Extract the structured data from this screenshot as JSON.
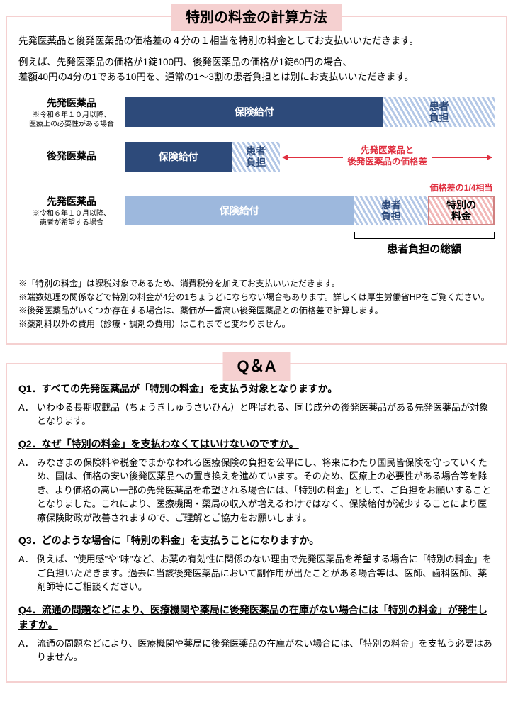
{
  "section1": {
    "title": "特別の料金の計算方法",
    "border_color": "#f5d0d0",
    "title_bg": "#f5d0d0",
    "title_color": "#000000",
    "intro": "先発医薬品と後発医薬品の価格差の４分の１相当を特別の料金としてお支払いいただきます。",
    "example_l1": "例えば、先発医薬品の価格が1錠100円、後発医薬品の価格が1錠60円の場合、",
    "example_l2": "差額40円の4分の1である10円を、通常の1〜3割の患者負担とは別にお支払いいただきます。",
    "chart": {
      "rows": [
        {
          "label_main": "先発医薬品",
          "label_sub": "※令和６年１０月以降、\n医療上の必要性がある場合",
          "segments": [
            {
              "text": "保険給付",
              "width_pct": 70,
              "bg": "#2d4a7a",
              "fg": "#ffffff",
              "hatch": null
            },
            {
              "text": "患者\n負担",
              "width_pct": 30,
              "bg": null,
              "fg": "#2d4a7a",
              "hatch": "blue"
            }
          ]
        },
        {
          "label_main": "後発医薬品",
          "label_sub": "",
          "segments": [
            {
              "text": "保険給付",
              "width_pct": 29,
              "bg": "#2d4a7a",
              "fg": "#ffffff",
              "hatch": null
            },
            {
              "text": "患者\n負担",
              "width_pct": 13,
              "bg": null,
              "fg": "#2d4a7a",
              "hatch": "blue"
            }
          ],
          "arrow": {
            "text_l1": "先発医薬品と",
            "text_l2": "後発医薬品の価格差",
            "color": "#e03040"
          }
        },
        {
          "label_main": "先発医薬品",
          "label_sub": "※令和６年１０月以降、\n患者が希望する場合",
          "top_note": "価格差の1/4相当",
          "top_note_color": "#e03040",
          "segments": [
            {
              "text": "保険給付",
              "width_pct": 62,
              "bg": "#9db8dd",
              "fg": "#ffffff",
              "hatch": null
            },
            {
              "text": "患者\n負担",
              "width_pct": 20,
              "bg": null,
              "fg": "#2d4a7a",
              "hatch": "blue"
            },
            {
              "text": "特別の\n料金",
              "width_pct": 18,
              "bg": null,
              "fg": "#000000",
              "hatch": "red",
              "border": "#d08080"
            }
          ],
          "bracket_label": "患者負担の総額"
        }
      ]
    },
    "notes": [
      "※「特別の料金」は課税対象であるため、消費税分を加えてお支払いいただきます。",
      "※端数処理の関係などで特別の料金が4分の1ちょうどにならない場合もあります。詳しくは厚生労働省HPをご覧ください。",
      "※後発医薬品がいくつか存在する場合は、薬価が一番高い後発医薬品との価格差で計算します。",
      "※薬剤料以外の費用（診療・調剤の費用）はこれまでと変わりません。"
    ]
  },
  "section2": {
    "title": "Q＆A",
    "border_color": "#f5d0d0",
    "title_bg": "#f5d0d0",
    "title_color": "#000000",
    "qa": [
      {
        "q": "Q1．すべての先発医薬品が「特別の料金」を支払う対象となりますか。",
        "a": "いわゆる長期収載品（ちょうきしゅうさいひん）と呼ばれる、同じ成分の後発医薬品がある先発医薬品が対象となります。"
      },
      {
        "q": "Q2．なぜ「特別の料金」を支払わなくてはいけないのですか。",
        "a": "みなさまの保険料や税金でまかなわれる医療保険の負担を公平にし、将来にわたり国民皆保険を守っていくため、国は、価格の安い後発医薬品への置き換えを進めています。そのため、医療上の必要性がある場合等を除き、より価格の高い一部の先発医薬品を希望される場合には、「特別の料金」として、ご負担をお願いすることとなりました。これにより、医療機関・薬局の収入が増えるわけではなく、保険給付が減少することにより医療保険財政が改善されますので、ご理解とご協力をお願いします。"
      },
      {
        "q": "Q3．どのような場合に「特別の料金」を支払うことになりますか。",
        "a": "例えば、\"使用感\"や\"味\"など、お薬の有効性に関係のない理由で先発医薬品を希望する場合に「特別の料金」をご負担いただきます。過去に当該後発医薬品において副作用が出たことがある場合等は、医師、歯科医師、薬剤師等にご相談ください。"
      },
      {
        "q": "Q4．流通の問題などにより、医療機関や薬局に後発医薬品の在庫がない場合には「特別の料金」が発生しますか。",
        "a": "流通の問題などにより、医療機関や薬局に後発医薬品の在庫がない場合には、「特別の料金」を支払う必要はありません。"
      }
    ]
  }
}
